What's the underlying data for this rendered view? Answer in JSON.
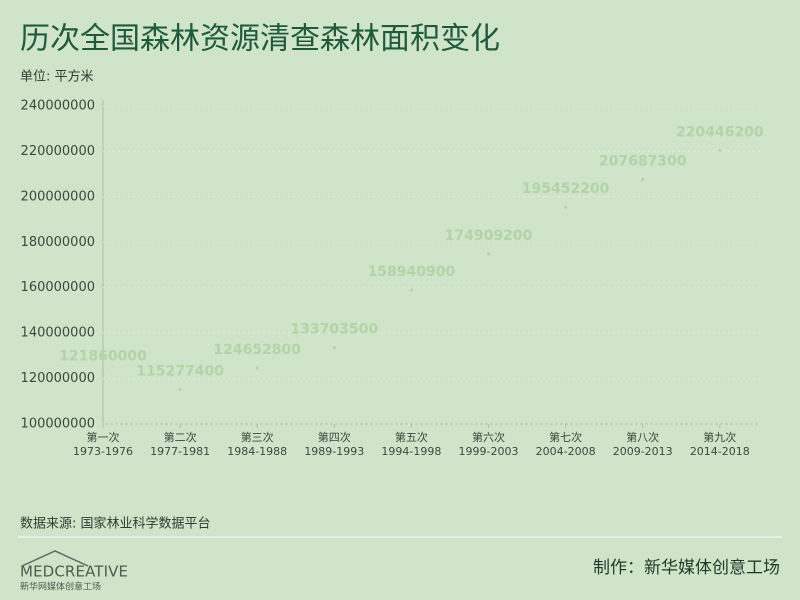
{
  "chart_data": {
    "type": "dot",
    "title": "历次全国森林资源清查森林面积变化",
    "unit": "单位: 平方米",
    "categories": [
      "第一次",
      "第二次",
      "第三次",
      "第四次",
      "第五次",
      "第六次",
      "第七次",
      "第八次",
      "第九次"
    ],
    "periods": [
      "1973-1976",
      "1977-1981",
      "1984-1988",
      "1989-1993",
      "1994-1998",
      "1999-2003",
      "2004-2008",
      "2009-2013",
      "2014-2018"
    ],
    "values": [
      121860000,
      115277400,
      124652800,
      133703500,
      158940900,
      174909200,
      195452200,
      207687300,
      220446200
    ],
    "color": "#b3d3a8",
    "ylim": [
      100000000,
      240000000
    ],
    "yticks": [
      100000000,
      120000000,
      140000000,
      160000000,
      180000000,
      200000000,
      220000000,
      240000000
    ],
    "grid": true
  },
  "source": "数据来源: 国家林业科学数据平台",
  "credit": "制作：新华媒体创意工场",
  "logo": {
    "text": "MEDCREATIVE",
    "subtitle": "新华网媒体创意工场"
  }
}
